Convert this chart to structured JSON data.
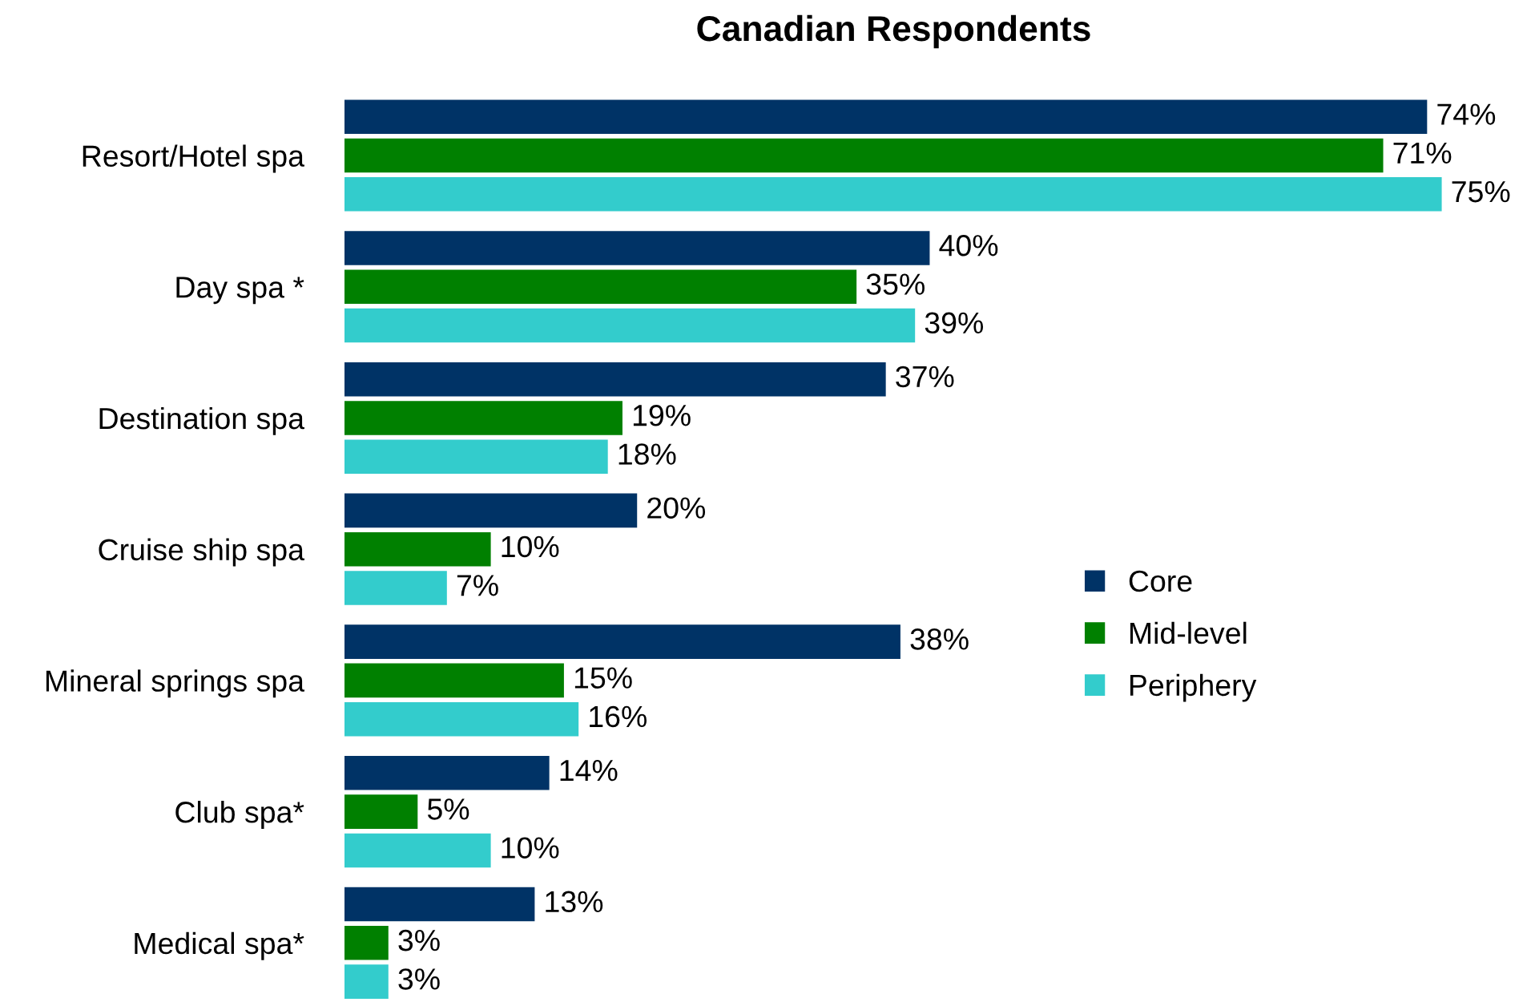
{
  "chart_data": {
    "type": "bar",
    "orientation": "horizontal",
    "title": "Canadian Respondents",
    "categories": [
      "Resort/Hotel spa",
      "Day spa *",
      "Destination spa",
      "Cruise ship spa",
      "Mineral springs spa",
      "Club spa*",
      "Medical spa*"
    ],
    "series": [
      {
        "name": "Core",
        "color": "#003366",
        "values": [
          74,
          40,
          37,
          20,
          38,
          14,
          13
        ],
        "value_labels": [
          "74%",
          "40%",
          "37%",
          "20%",
          "38%",
          "14%",
          "13%"
        ]
      },
      {
        "name": "Mid-level",
        "color": "#008000",
        "values": [
          71,
          35,
          19,
          10,
          15,
          5,
          3
        ],
        "value_labels": [
          "71%",
          "35%",
          "19%",
          "10%",
          "15%",
          "5%",
          "3%"
        ]
      },
      {
        "name": "Periphery",
        "color": "#33cccc",
        "values": [
          75,
          39,
          18,
          7,
          16,
          10,
          3
        ],
        "value_labels": [
          "75%",
          "39%",
          "18%",
          "7%",
          "16%",
          "10%",
          "3%"
        ]
      }
    ],
    "legend": "right"
  }
}
